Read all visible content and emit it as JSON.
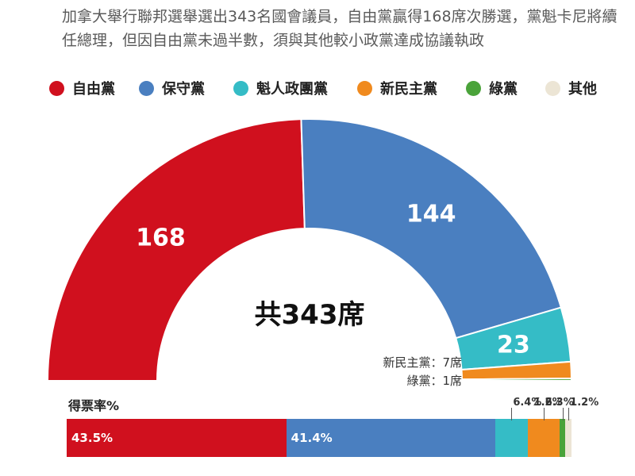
{
  "subtitle": "加拿大舉行聯邦選舉選出343名國會議員，自由黨贏得168席次勝選，黨魁卡尼將續任總理，但因自由黨未過半數，須與其他較小政黨達成協議執政",
  "colors": {
    "liberal": "#d0101e",
    "conservative": "#4a7fc0",
    "bloc": "#35bcc6",
    "ndp": "#f08a1e",
    "green": "#4aa33a",
    "other": "#ece5d5"
  },
  "legend": [
    {
      "label": "自由黨",
      "color": "#d0101e"
    },
    {
      "label": "保守黨",
      "color": "#4a7fc0"
    },
    {
      "label": "魁人政團黨",
      "color": "#35bcc6"
    },
    {
      "label": "新民主黨",
      "color": "#f08a1e"
    },
    {
      "label": "綠黨",
      "color": "#4aa33a"
    },
    {
      "label": "其他",
      "color": "#ece5d5"
    }
  ],
  "chart_data": [
    {
      "type": "pie",
      "variant": "semicircle-parliament",
      "center_label": "共343席",
      "total": 343,
      "slices": [
        {
          "name": "自由黨",
          "value": 168,
          "label": "168",
          "color": "#d0101e"
        },
        {
          "name": "保守黨",
          "value": 144,
          "label": "144",
          "color": "#4a7fc0"
        },
        {
          "name": "魁人政團黨",
          "value": 23,
          "label": "23",
          "color": "#35bcc6"
        },
        {
          "name": "新民主黨",
          "value": 7,
          "color": "#f08a1e"
        },
        {
          "name": "綠黨",
          "value": 1,
          "color": "#4aa33a"
        }
      ],
      "annotations": [
        "新民主黨：7席",
        "綠黨：1席"
      ]
    },
    {
      "type": "bar",
      "variant": "100%-stacked-horizontal",
      "title": "得票率%",
      "series": [
        {
          "name": "自由黨",
          "value": 43.5,
          "label": "43.5%",
          "color": "#d0101e"
        },
        {
          "name": "保守黨",
          "value": 41.4,
          "label": "41.4%",
          "color": "#4a7fc0"
        },
        {
          "name": "魁人政團黨",
          "value": 6.4,
          "label": "6.4%",
          "color": "#35bcc6"
        },
        {
          "name": "新民主黨",
          "value": 6.3,
          "label": "6.3%",
          "color": "#f08a1e"
        },
        {
          "name": "綠黨",
          "value": 1.2,
          "label": "1.2%",
          "color": "#4aa33a"
        },
        {
          "name": "其他",
          "value": 1.2,
          "label": "1.2%",
          "color": "#ece5d5"
        }
      ]
    }
  ]
}
